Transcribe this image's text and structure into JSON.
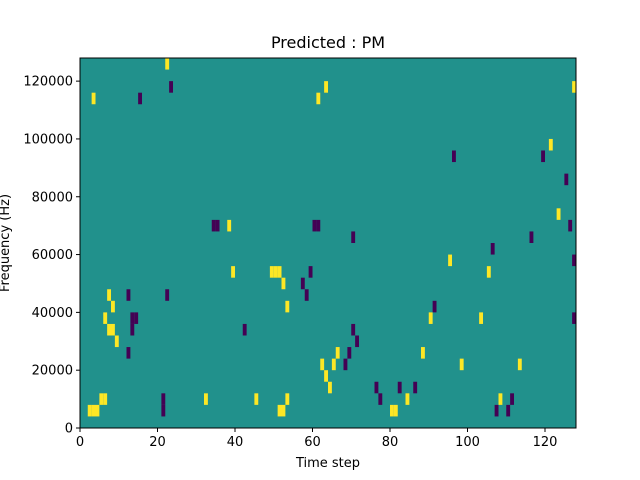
{
  "chart_data": {
    "type": "heatmap",
    "title": "Predicted : PM",
    "xlabel": "Time step",
    "ylabel": "Frequency (Hz)",
    "xlim": [
      0,
      128
    ],
    "ylim": [
      0,
      128000
    ],
    "x_ticks": [
      0,
      20,
      40,
      60,
      80,
      100,
      120
    ],
    "y_ticks": [
      0,
      20000,
      40000,
      60000,
      80000,
      100000,
      120000
    ],
    "x_tick_labels": [
      "0",
      "20",
      "40",
      "60",
      "80",
      "100",
      "120"
    ],
    "y_tick_labels": [
      "0",
      "20000",
      "40000",
      "60000",
      "80000",
      "100000",
      "120000"
    ],
    "colormap": "viridis",
    "value_range": [
      -1,
      1
    ],
    "values_note": "background 0 (teal); sparse +1 (yellow) and -1 (purple) cells",
    "colors": {
      "background": "#21918c",
      "positive": "#fde725",
      "negative": "#440154"
    },
    "grid": false,
    "cells": [
      [
        2,
        4000,
        1
      ],
      [
        3,
        4000,
        1
      ],
      [
        4,
        4000,
        1
      ],
      [
        5,
        8000,
        1
      ],
      [
        6,
        8000,
        1
      ],
      [
        7,
        32000,
        1
      ],
      [
        8,
        32000,
        1
      ],
      [
        9,
        28000,
        1
      ],
      [
        8,
        40000,
        1
      ],
      [
        6,
        36000,
        1
      ],
      [
        7,
        44000,
        1
      ],
      [
        3,
        112000,
        1
      ],
      [
        12,
        24000,
        -1
      ],
      [
        13,
        36000,
        -1
      ],
      [
        14,
        36000,
        -1
      ],
      [
        13,
        32000,
        -1
      ],
      [
        12,
        44000,
        -1
      ],
      [
        15,
        112000,
        -1
      ],
      [
        21,
        8000,
        -1
      ],
      [
        21,
        4000,
        -1
      ],
      [
        22,
        44000,
        -1
      ],
      [
        22,
        124000,
        1
      ],
      [
        23,
        116000,
        -1
      ],
      [
        34,
        68000,
        -1
      ],
      [
        35,
        68000,
        -1
      ],
      [
        32,
        8000,
        1
      ],
      [
        38,
        68000,
        1
      ],
      [
        39,
        52000,
        1
      ],
      [
        42,
        32000,
        -1
      ],
      [
        45,
        8000,
        1
      ],
      [
        49,
        52000,
        1
      ],
      [
        50,
        52000,
        1
      ],
      [
        51,
        52000,
        1
      ],
      [
        52,
        48000,
        1
      ],
      [
        53,
        40000,
        1
      ],
      [
        51,
        4000,
        1
      ],
      [
        52,
        4000,
        1
      ],
      [
        53,
        8000,
        1
      ],
      [
        57,
        48000,
        -1
      ],
      [
        58,
        44000,
        -1
      ],
      [
        59,
        52000,
        -1
      ],
      [
        60,
        68000,
        -1
      ],
      [
        61,
        68000,
        -1
      ],
      [
        62,
        20000,
        1
      ],
      [
        63,
        16000,
        1
      ],
      [
        64,
        12000,
        1
      ],
      [
        65,
        20000,
        1
      ],
      [
        66,
        24000,
        1
      ],
      [
        61,
        112000,
        1
      ],
      [
        63,
        116000,
        1
      ],
      [
        68,
        20000,
        -1
      ],
      [
        69,
        24000,
        -1
      ],
      [
        70,
        32000,
        -1
      ],
      [
        71,
        28000,
        -1
      ],
      [
        70,
        64000,
        -1
      ],
      [
        76,
        12000,
        -1
      ],
      [
        77,
        8000,
        -1
      ],
      [
        80,
        4000,
        1
      ],
      [
        81,
        4000,
        1
      ],
      [
        82,
        12000,
        -1
      ],
      [
        84,
        8000,
        1
      ],
      [
        86,
        12000,
        -1
      ],
      [
        88,
        24000,
        1
      ],
      [
        90,
        36000,
        1
      ],
      [
        91,
        40000,
        -1
      ],
      [
        95,
        56000,
        1
      ],
      [
        96,
        92000,
        -1
      ],
      [
        98,
        20000,
        1
      ],
      [
        103,
        36000,
        1
      ],
      [
        105,
        52000,
        1
      ],
      [
        106,
        60000,
        -1
      ],
      [
        107,
        4000,
        -1
      ],
      [
        108,
        8000,
        1
      ],
      [
        110,
        4000,
        -1
      ],
      [
        111,
        8000,
        -1
      ],
      [
        113,
        20000,
        1
      ],
      [
        116,
        64000,
        -1
      ],
      [
        119,
        92000,
        -1
      ],
      [
        121,
        96000,
        1
      ],
      [
        123,
        72000,
        1
      ],
      [
        125,
        84000,
        -1
      ],
      [
        126,
        68000,
        -1
      ],
      [
        127,
        116000,
        1
      ],
      [
        127,
        56000,
        -1
      ],
      [
        127,
        36000,
        -1
      ]
    ]
  }
}
